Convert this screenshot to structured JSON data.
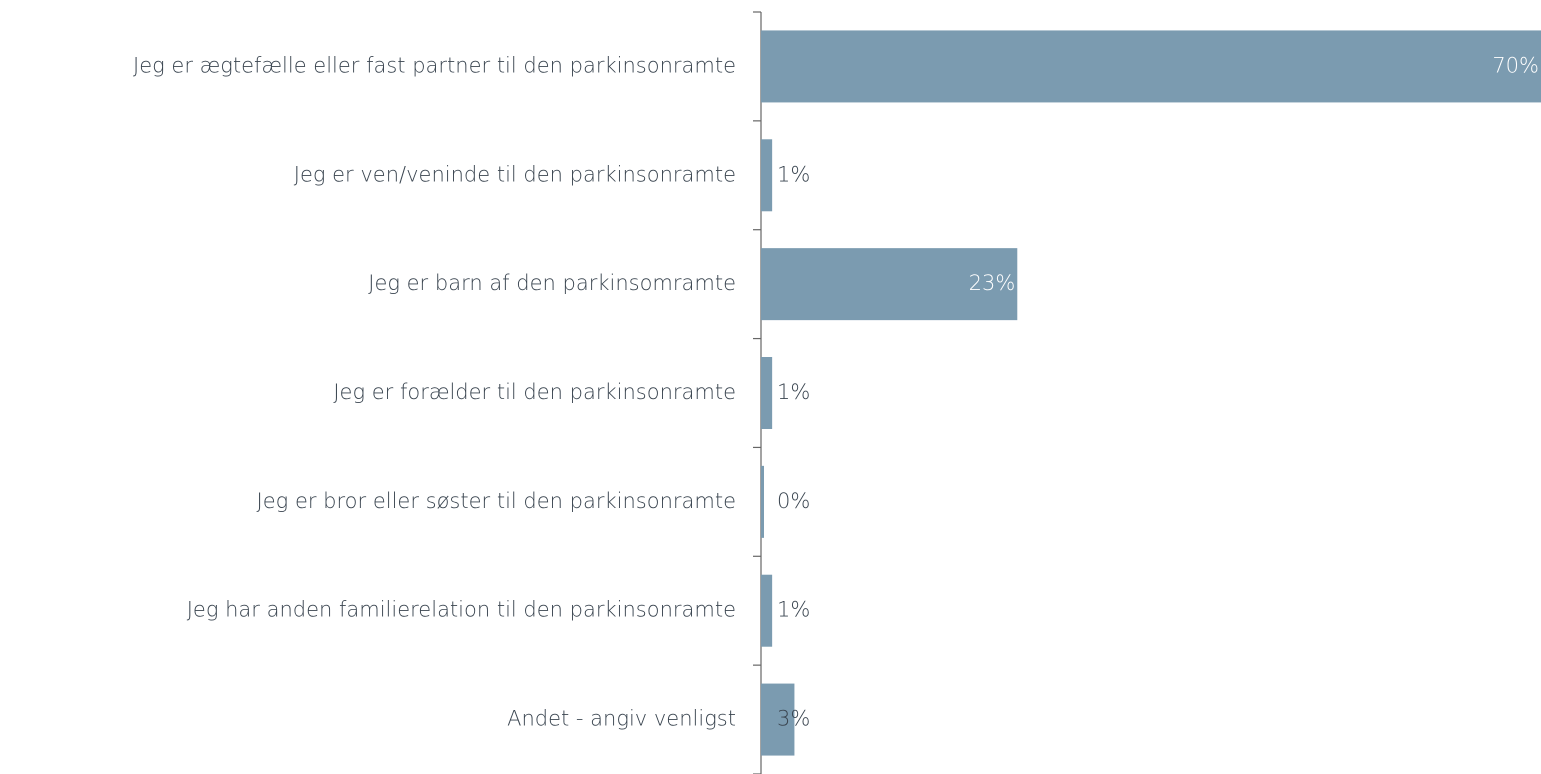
{
  "chart_data": {
    "type": "bar",
    "orientation": "horizontal",
    "categories": [
      "Jeg er ægtefælle eller fast partner til den parkinsonramte",
      "Jeg er ven/veninde til den parkinsonramte",
      "Jeg er barn af den parkinsomramte",
      "Jeg er forælder til den parkinsonramte",
      "Jeg er bror eller søster til den parkinsonramte",
      "Jeg har anden familierelation til den parkinsonramte",
      "Andet - angiv venligst"
    ],
    "values": [
      70,
      1,
      23,
      1,
      0,
      1,
      3
    ],
    "value_labels": [
      "70%",
      "1%",
      "23%",
      "1%",
      "0%",
      "1%",
      "3%"
    ],
    "color": "#7b9bb0",
    "xlim": [
      0,
      70
    ]
  }
}
